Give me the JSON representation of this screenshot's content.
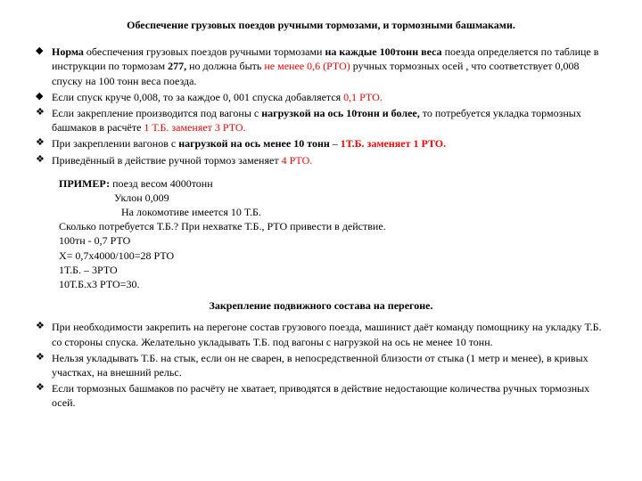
{
  "title": "Обеспечение грузовых поездов  ручными тормозами, и тормозными башмаками.",
  "bullets1": [
    {
      "marker": "◆",
      "segments": [
        {
          "t": " ",
          "cls": ""
        },
        {
          "t": "Норма",
          "cls": "bold"
        },
        {
          "t": " обеспечения грузовых поездов  ручными тормозами ",
          "cls": ""
        },
        {
          "t": "на каждые 100тонн веса",
          "cls": "bold"
        },
        {
          "t": " поезда определяется по таблице  в инструкции по тормозам ",
          "cls": ""
        },
        {
          "t": "277,",
          "cls": "bold"
        },
        {
          "t": " но должна быть ",
          "cls": ""
        },
        {
          "t": "не менее 0,6 (РТО)",
          "cls": "red"
        },
        {
          "t": " ручных тормозных осей , что соответствует 0,008 спуску на 100 тонн веса поезда.",
          "cls": ""
        }
      ]
    },
    {
      "marker": "◆",
      "segments": [
        {
          "t": " Если спуск круче 0,008, то за каждое 0, 001 спуска добавляется ",
          "cls": ""
        },
        {
          "t": "0,1 РТО.",
          "cls": "red"
        }
      ]
    },
    {
      "marker": "❖",
      "segments": [
        {
          "t": "Если закрепление производится под вагоны с ",
          "cls": ""
        },
        {
          "t": "нагрузкой на ось 10тонн и более,",
          "cls": "bold"
        },
        {
          "t": " то потребуется укладка тормозных башмаков в расчёте ",
          "cls": ""
        },
        {
          "t": "1 Т.Б.   заменяет  3 РТО.",
          "cls": "red"
        }
      ]
    },
    {
      "marker": "❖",
      "segments": [
        {
          "t": "  При закреплении вагонов  с ",
          "cls": ""
        },
        {
          "t": "нагрузкой на ось менее 10 тонн",
          "cls": "bold"
        },
        {
          "t": " – ",
          "cls": ""
        },
        {
          "t": "1Т.Б. заменяет 1 РТО.",
          "cls": "red bold"
        }
      ]
    },
    {
      "marker": "❖",
      "segments": [
        {
          "t": "  Приведённый  в действие ручной тормоз заменяет  ",
          "cls": ""
        },
        {
          "t": "4 РТО.",
          "cls": "red"
        }
      ]
    }
  ],
  "example": {
    "header_label": "ПРИМЕР:",
    "header_rest": "  поезд весом 4000тонн",
    "l2": "Уклон           0,009",
    "l3": " На локомотиве имеется 10 Т.Б.",
    "l4": "Сколько потребуется Т.Б.? При нехватке Т.Б., РТО  привести в действие.",
    "l5": "100тн  - 0,7 РТО",
    "l6": "Х= 0,7х4000/100=28 РТО",
    "l7": "1Т.Б. – 3РТО",
    "l8": "10Т.Б.х3 РТО=30."
  },
  "subtitle": "Закрепление подвижного состава на перегоне.",
  "bullets2": [
    {
      "marker": "❖",
      "segments": [
        {
          "t": "При  необходимости закрепить на перегоне состав грузового поезда, машинист даёт команду помощнику на укладку Т.Б. со стороны спуска. Желательно укладывать Т.Б. под вагоны с нагрузкой на ось не менее 10 тонн.",
          "cls": ""
        }
      ]
    },
    {
      "marker": "❖",
      "segments": [
        {
          "t": "Нельзя укладывать Т.Б. на стык, если он не сварен, в непосредственной близости  от стыка (1 метр и менее), в кривых участках, на внешний рельс.",
          "cls": ""
        }
      ]
    },
    {
      "marker": "❖",
      "segments": [
        {
          "t": " Если тормозных башмаков по расчёту не хватает, приводятся в действие недостающие количества ручных тормозных осей.",
          "cls": ""
        }
      ]
    }
  ]
}
